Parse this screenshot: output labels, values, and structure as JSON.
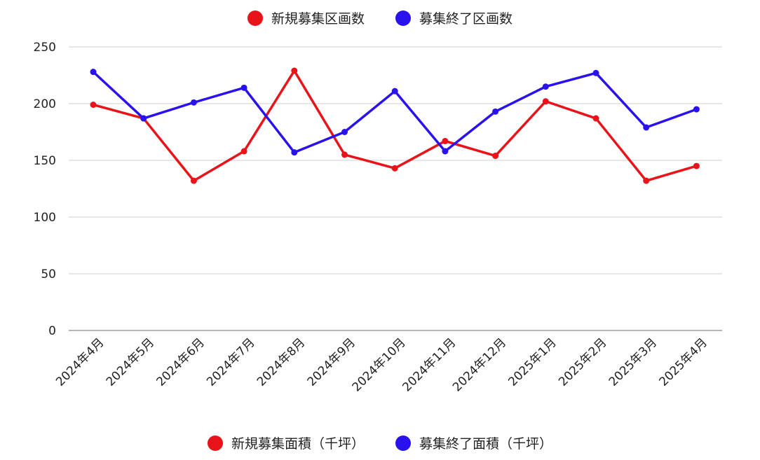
{
  "chart_data": {
    "type": "line",
    "categories": [
      "2024年4月",
      "2024年5月",
      "2024年6月",
      "2024年7月",
      "2024年8月",
      "2024年9月",
      "2024年10月",
      "2024年11月",
      "2024年12月",
      "2025年1月",
      "2025年2月",
      "2025年3月",
      "2025年4月"
    ],
    "series": [
      {
        "name": "新規募集区画数",
        "color": "#e8141a",
        "values": [
          199,
          187,
          132,
          158,
          229,
          155,
          143,
          167,
          154,
          202,
          187,
          132,
          145
        ]
      },
      {
        "name": "募集終了区画数",
        "color": "#2a12ee",
        "values": [
          228,
          187,
          201,
          214,
          157,
          175,
          211,
          158,
          193,
          215,
          227,
          179,
          195
        ]
      }
    ],
    "ylim": [
      0,
      250
    ],
    "yticks": [
      0,
      50,
      100,
      150,
      200,
      250
    ],
    "grid": true,
    "legend_top": [
      {
        "label": "新規募集区画数",
        "color": "#e8141a"
      },
      {
        "label": "募集終了区画数",
        "color": "#2a12ee"
      }
    ],
    "legend_bottom": [
      {
        "label": "新規募集面積（千坪）",
        "color": "#e8141a"
      },
      {
        "label": "募集終了面積（千坪）",
        "color": "#2a12ee"
      }
    ]
  }
}
